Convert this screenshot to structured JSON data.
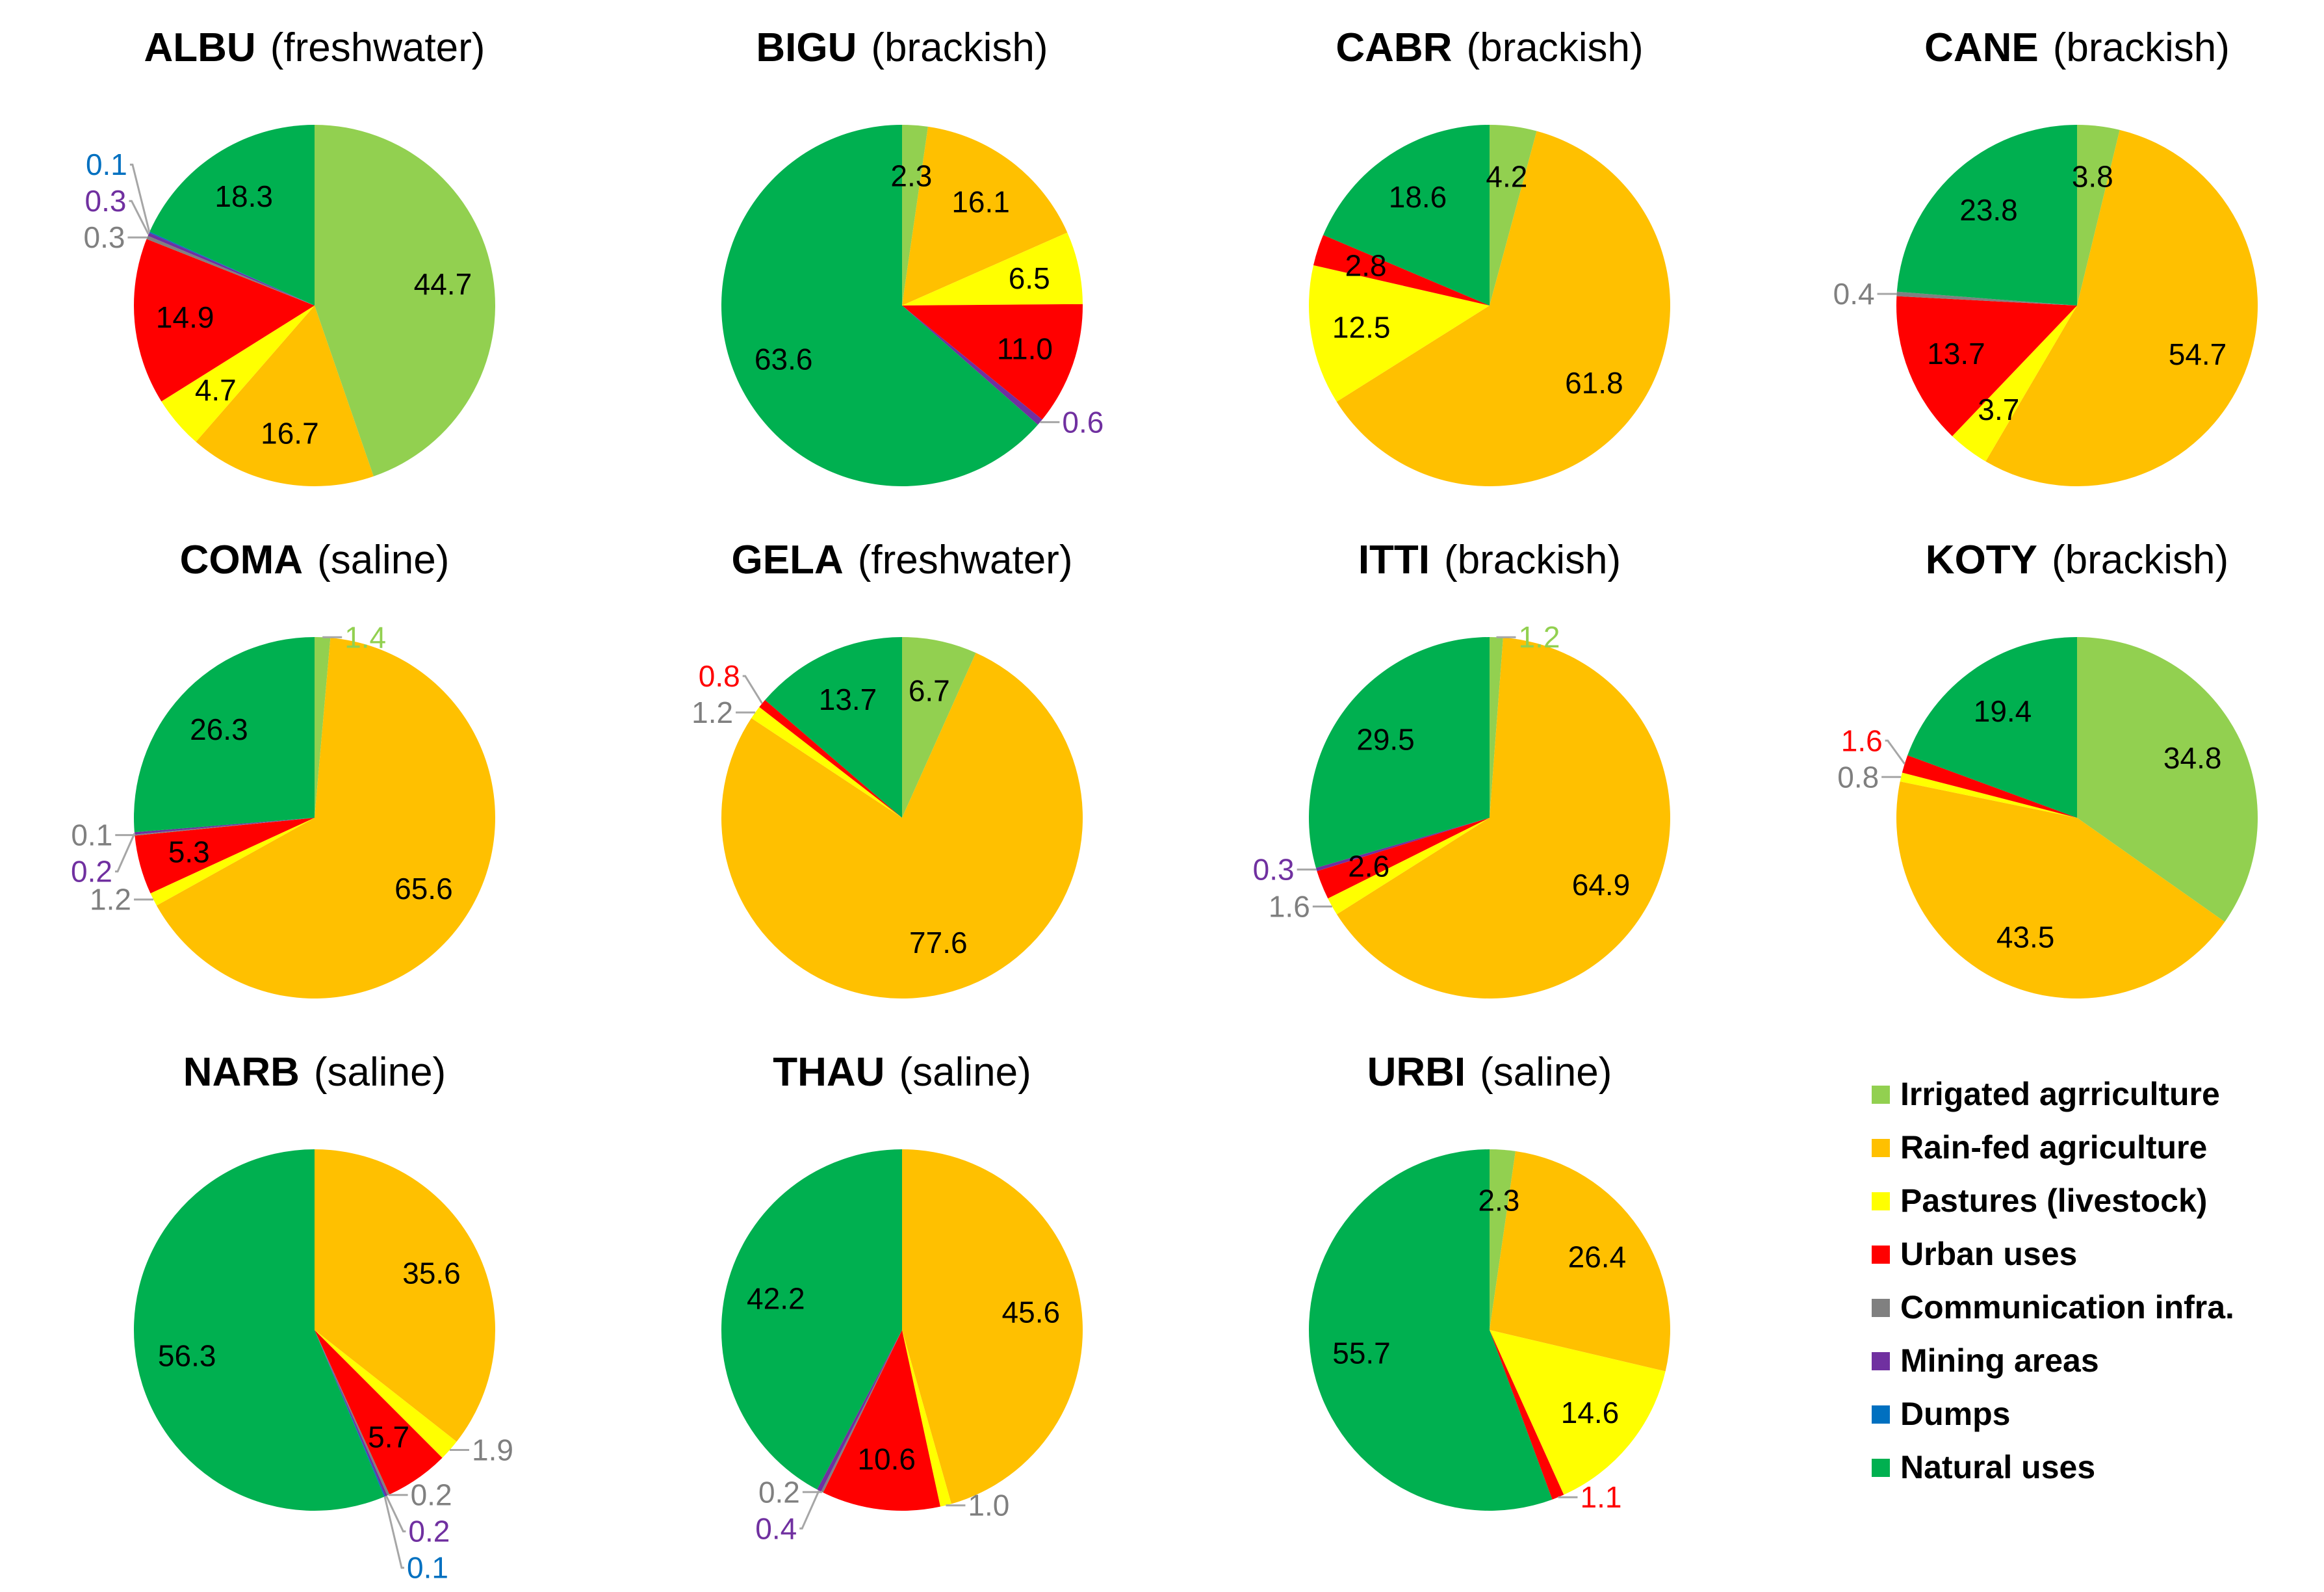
{
  "categories": [
    {
      "key": "irrigated",
      "label": "Irrigated agrriculture",
      "color": "#92D050"
    },
    {
      "key": "rainfed",
      "label": "Rain-fed agriculture",
      "color": "#FFC000"
    },
    {
      "key": "pastures",
      "label": "Pastures (livestock)",
      "color": "#FFFF00"
    },
    {
      "key": "urban",
      "label": "Urban uses",
      "color": "#FF0000"
    },
    {
      "key": "communication",
      "label": "Communication infra.",
      "color": "#808080"
    },
    {
      "key": "mining",
      "label": "Mining areas",
      "color": "#7030A0"
    },
    {
      "key": "dumps",
      "label": "Dumps",
      "color": "#0070C0"
    },
    {
      "key": "natural",
      "label": "Natural uses",
      "color": "#00B050"
    }
  ],
  "chart_data": [
    {
      "type": "pie",
      "title": "ALBU",
      "subtitle": "(freshwater)",
      "slices": [
        {
          "category": "Irrigated agrriculture",
          "value": 44.7,
          "label": "44.7"
        },
        {
          "category": "Rain-fed agriculture",
          "value": 16.7,
          "label": "16.7"
        },
        {
          "category": "Pastures (livestock)",
          "value": 4.7,
          "label": "4.7"
        },
        {
          "category": "Urban uses",
          "value": 14.9,
          "label": "14.9"
        },
        {
          "category": "Communication infra.",
          "value": 0.3,
          "label": "0.3"
        },
        {
          "category": "Mining areas",
          "value": 0.3,
          "label": "0.3"
        },
        {
          "category": "Dumps",
          "value": 0.1,
          "label": "0.1"
        },
        {
          "category": "Natural uses",
          "value": 18.3,
          "label": "18.3"
        }
      ]
    },
    {
      "type": "pie",
      "title": "BIGU",
      "subtitle": "(brackish)",
      "slices": [
        {
          "category": "Irrigated agrriculture",
          "value": 2.3,
          "label": "2.3"
        },
        {
          "category": "Rain-fed agriculture",
          "value": 16.1,
          "label": "16.1"
        },
        {
          "category": "Pastures (livestock)",
          "value": 6.5,
          "label": "6.5"
        },
        {
          "category": "Urban uses",
          "value": 11.0,
          "label": "11.0"
        },
        {
          "category": "Mining areas",
          "value": 0.6,
          "label": "0.6"
        },
        {
          "category": "Natural uses",
          "value": 63.6,
          "label": "63.6"
        }
      ]
    },
    {
      "type": "pie",
      "title": "CABR",
      "subtitle": "(brackish)",
      "slices": [
        {
          "category": "Irrigated agrriculture",
          "value": 4.2,
          "label": "4.2"
        },
        {
          "category": "Rain-fed agriculture",
          "value": 61.8,
          "label": "61.8"
        },
        {
          "category": "Pastures (livestock)",
          "value": 12.5,
          "label": "12.5"
        },
        {
          "category": "Urban uses",
          "value": 2.8,
          "label": "2.8"
        },
        {
          "category": "Natural uses",
          "value": 18.6,
          "label": "18.6"
        }
      ]
    },
    {
      "type": "pie",
      "title": "CANE",
      "subtitle": "(brackish)",
      "slices": [
        {
          "category": "Irrigated agrriculture",
          "value": 3.8,
          "label": "3.8"
        },
        {
          "category": "Rain-fed agriculture",
          "value": 54.7,
          "label": "54.7"
        },
        {
          "category": "Pastures (livestock)",
          "value": 3.7,
          "label": "3.7"
        },
        {
          "category": "Urban uses",
          "value": 13.7,
          "label": "13.7"
        },
        {
          "category": "Communication infra.",
          "value": 0.4,
          "label": "0.4"
        },
        {
          "category": "Natural uses",
          "value": 23.8,
          "label": "23.8"
        }
      ]
    },
    {
      "type": "pie",
      "title": "COMA",
      "subtitle": "(saline)",
      "slices": [
        {
          "category": "Irrigated agrriculture",
          "value": 1.4,
          "label": "1.4"
        },
        {
          "category": "Rain-fed agriculture",
          "value": 65.6,
          "label": "65.6"
        },
        {
          "category": "Pastures (livestock)",
          "value": 1.2,
          "label": "1.2"
        },
        {
          "category": "Urban uses",
          "value": 5.3,
          "label": "5.3"
        },
        {
          "category": "Communication infra.",
          "value": 0.1,
          "label": "0.1"
        },
        {
          "category": "Mining areas",
          "value": 0.2,
          "label": "0.2"
        },
        {
          "category": "Natural uses",
          "value": 26.3,
          "label": "26.3"
        }
      ]
    },
    {
      "type": "pie",
      "title": "GELA",
      "subtitle": "(freshwater)",
      "slices": [
        {
          "category": "Irrigated agrriculture",
          "value": 6.7,
          "label": "6.7"
        },
        {
          "category": "Rain-fed agriculture",
          "value": 77.6,
          "label": "77.6"
        },
        {
          "category": "Pastures (livestock)",
          "value": 1.2,
          "label": "1.2"
        },
        {
          "category": "Urban uses",
          "value": 0.8,
          "label": "0.8"
        },
        {
          "category": "Natural uses",
          "value": 13.7,
          "label": "13.7"
        }
      ]
    },
    {
      "type": "pie",
      "title": "ITTI",
      "subtitle": "(brackish)",
      "slices": [
        {
          "category": "Irrigated agrriculture",
          "value": 1.2,
          "label": "1.2"
        },
        {
          "category": "Rain-fed agriculture",
          "value": 64.9,
          "label": "64.9"
        },
        {
          "category": "Pastures (livestock)",
          "value": 1.6,
          "label": "1.6"
        },
        {
          "category": "Urban uses",
          "value": 2.6,
          "label": "2.6"
        },
        {
          "category": "Mining areas",
          "value": 0.3,
          "label": "0.3"
        },
        {
          "category": "Natural uses",
          "value": 29.5,
          "label": "29.5"
        }
      ]
    },
    {
      "type": "pie",
      "title": "KOTY",
      "subtitle": "(brackish)",
      "slices": [
        {
          "category": "Irrigated agrriculture",
          "value": 34.8,
          "label": "34.8"
        },
        {
          "category": "Rain-fed agriculture",
          "value": 43.5,
          "label": "43.5"
        },
        {
          "category": "Pastures (livestock)",
          "value": 0.8,
          "label": "0.8"
        },
        {
          "category": "Urban uses",
          "value": 1.6,
          "label": "1.6"
        },
        {
          "category": "Natural uses",
          "value": 19.4,
          "label": "19.4"
        }
      ]
    },
    {
      "type": "pie",
      "title": "NARB",
      "subtitle": "(saline)",
      "slices": [
        {
          "category": "Rain-fed agriculture",
          "value": 35.6,
          "label": "35.6"
        },
        {
          "category": "Pastures (livestock)",
          "value": 1.9,
          "label": "1.9"
        },
        {
          "category": "Urban uses",
          "value": 5.7,
          "label": "5.7"
        },
        {
          "category": "Communication infra.",
          "value": 0.2,
          "label": "0.2"
        },
        {
          "category": "Mining areas",
          "value": 0.2,
          "label": "0.2"
        },
        {
          "category": "Dumps",
          "value": 0.1,
          "label": "0.1"
        },
        {
          "category": "Natural uses",
          "value": 56.3,
          "label": "56.3"
        }
      ]
    },
    {
      "type": "pie",
      "title": "THAU",
      "subtitle": "(saline)",
      "slices": [
        {
          "category": "Rain-fed agriculture",
          "value": 45.6,
          "label": "45.6"
        },
        {
          "category": "Pastures (livestock)",
          "value": 1.0,
          "label": "1.0"
        },
        {
          "category": "Urban uses",
          "value": 10.6,
          "label": "10.6"
        },
        {
          "category": "Communication infra.",
          "value": 0.2,
          "label": "0.2"
        },
        {
          "category": "Mining areas",
          "value": 0.4,
          "label": "0.4"
        },
        {
          "category": "Natural uses",
          "value": 42.2,
          "label": "42.2"
        }
      ]
    },
    {
      "type": "pie",
      "title": "URBI",
      "subtitle": "(saline)",
      "slices": [
        {
          "category": "Irrigated agrriculture",
          "value": 2.3,
          "label": "2.3"
        },
        {
          "category": "Rain-fed agriculture",
          "value": 26.4,
          "label": "26.4"
        },
        {
          "category": "Pastures (livestock)",
          "value": 14.6,
          "label": "14.6"
        },
        {
          "category": "Urban uses",
          "value": 1.1,
          "label": "1.1"
        },
        {
          "category": "Natural uses",
          "value": 55.7,
          "label": "55.7"
        }
      ]
    }
  ]
}
